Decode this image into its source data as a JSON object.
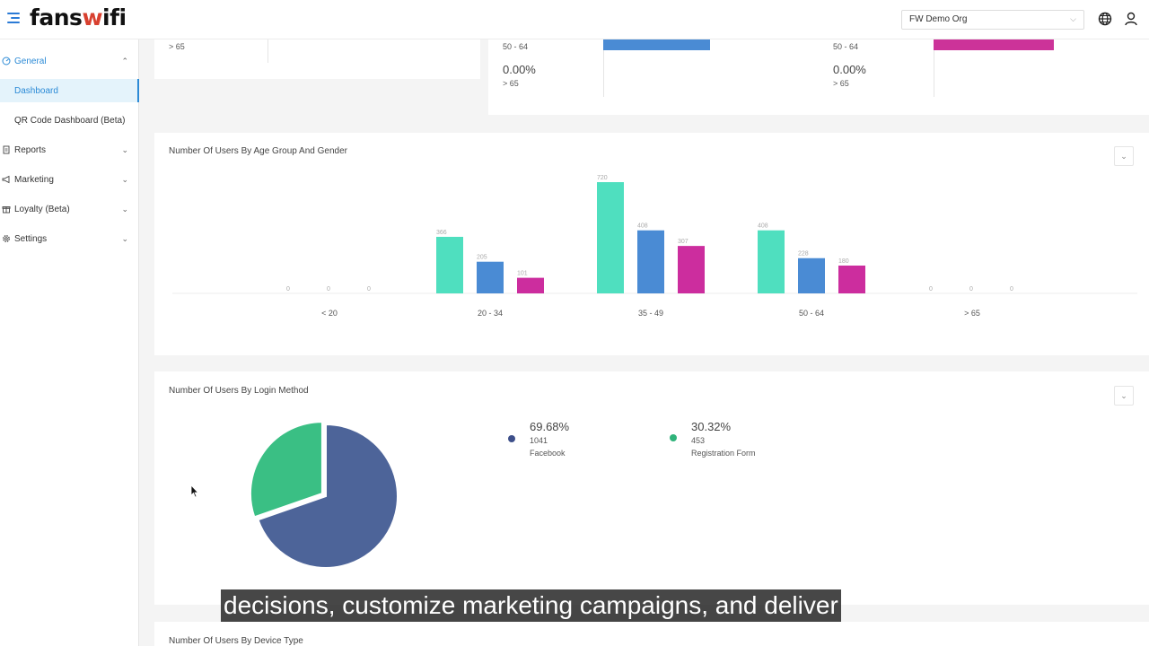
{
  "header": {
    "logo_main": "fans",
    "logo_accent": "w",
    "logo_tail": "ifi",
    "org_select": "FW Demo Org",
    "icons": [
      "menu-icon",
      "globe-icon",
      "user-icon"
    ]
  },
  "sidebar": {
    "items": [
      {
        "label": "General",
        "icon": "gauge-icon"
      },
      {
        "label": "Dashboard"
      },
      {
        "label": "QR Code Dashboard (Beta)"
      },
      {
        "label": "Reports",
        "icon": "document-icon"
      },
      {
        "label": "Marketing",
        "icon": "megaphone-icon"
      },
      {
        "label": "Loyalty (Beta)",
        "icon": "gift-icon"
      },
      {
        "label": "Settings",
        "icon": "gear-icon"
      }
    ]
  },
  "top_cards": {
    "left_label": "> 65",
    "mid": {
      "label_1": "50 - 64",
      "pct": "0.00%",
      "label_2": "> 65",
      "bar_color": "#4a8bd4"
    },
    "right": {
      "label_1": "50 - 64",
      "pct": "0.00%",
      "label_2": "> 65",
      "bar_color": "#cc3399"
    }
  },
  "age_gender_card": {
    "title": "Number Of Users By Age Group And Gender"
  },
  "chart_data": [
    {
      "type": "bar",
      "title": "Number Of Users By Age Group And Gender",
      "categories": [
        "< 20",
        "20 - 34",
        "35 - 49",
        "50 - 64",
        "> 65"
      ],
      "series": [
        {
          "color": "#4fdfbf",
          "values": [
            0,
            366,
            720,
            408,
            0
          ]
        },
        {
          "color": "#4a8bd4",
          "values": [
            0,
            205,
            408,
            228,
            0
          ]
        },
        {
          "color": "#cc2d9e",
          "values": [
            0,
            101,
            307,
            180,
            0
          ]
        }
      ],
      "ylim": [
        0,
        720
      ]
    },
    {
      "type": "pie",
      "title": "Number Of Users By Login Method",
      "slices": [
        {
          "name": "Facebook",
          "value": 1041,
          "percent": "69.68%",
          "color": "#4d6499"
        },
        {
          "name": "Registration Form",
          "value": 453,
          "percent": "30.32%",
          "color": "#3abf84"
        }
      ]
    }
  ],
  "login_card": {
    "title": "Number Of Users By Login Method",
    "legend": [
      {
        "percent": "69.68%",
        "count": "1041",
        "name": "Facebook",
        "color": "#3d4f8a"
      },
      {
        "percent": "30.32%",
        "count": "453",
        "name": "Registration Form",
        "color": "#2fb37a"
      }
    ]
  },
  "device_card": {
    "title": "Number Of Users By Device Type"
  },
  "subtitle": "decisions, customize marketing campaigns, and deliver"
}
